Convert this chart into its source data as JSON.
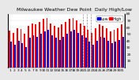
{
  "title": "Milwaukee Weather Dew Point",
  "subtitle": "Daily High/Low",
  "background_color": "#e8e8e8",
  "plot_bg_color": "#ffffff",
  "grid_color": "#aaaaaa",
  "bar_width": 0.4,
  "n_days": 31,
  "high_values": [
    55,
    52,
    58,
    57,
    50,
    62,
    66,
    64,
    68,
    72,
    74,
    66,
    62,
    60,
    64,
    68,
    72,
    74,
    70,
    66,
    62,
    56,
    52,
    59,
    64,
    62,
    59,
    54,
    56,
    59,
    64
  ],
  "low_values": [
    38,
    34,
    40,
    36,
    30,
    44,
    48,
    46,
    50,
    54,
    56,
    48,
    44,
    41,
    46,
    50,
    54,
    56,
    52,
    48,
    44,
    38,
    34,
    40,
    46,
    44,
    40,
    36,
    38,
    41,
    46
  ],
  "high_color": "#ff0000",
  "low_color": "#0000cc",
  "legend_high_label": "High",
  "legend_low_label": "Low",
  "ylim": [
    0,
    80
  ],
  "yticks": [
    10,
    20,
    30,
    40,
    50,
    60,
    70,
    80
  ],
  "title_fontsize": 4.5,
  "tick_fontsize": 3.2,
  "legend_fontsize": 3.5,
  "dashed_vline_x": [
    19.5,
    20.5,
    21.5
  ],
  "x_labels": [
    "1",
    "2",
    "3",
    "4",
    "5",
    "6",
    "7",
    "8",
    "9",
    "10",
    "11",
    "12",
    "13",
    "14",
    "15",
    "16",
    "17",
    "18",
    "19",
    "20",
    "21",
    "22",
    "23",
    "24",
    "25",
    "26",
    "27",
    "28",
    "29",
    "30",
    "31"
  ]
}
